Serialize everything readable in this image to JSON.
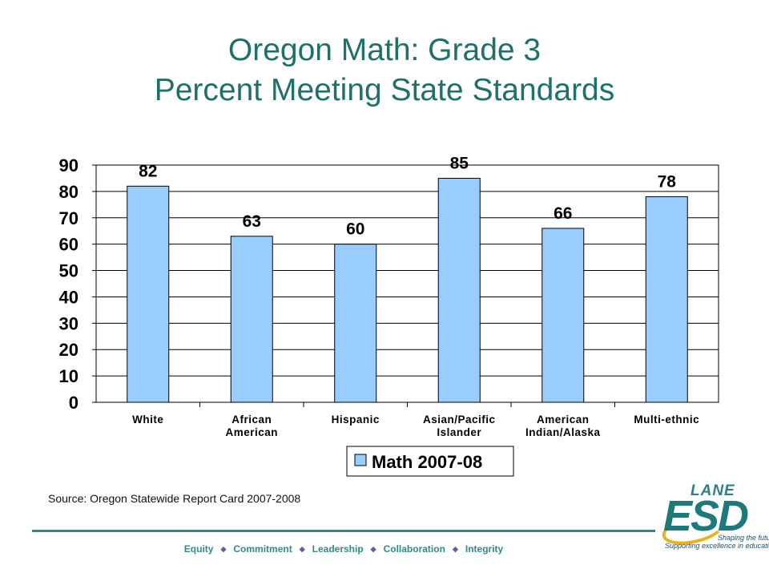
{
  "title_line1": "Oregon Math: Grade 3",
  "title_line2": "Percent Meeting State Standards",
  "chart_data": {
    "type": "bar",
    "categories": [
      [
        "White"
      ],
      [
        "African",
        "American"
      ],
      [
        "Hispanic"
      ],
      [
        "Asian/Pacific",
        "Islander"
      ],
      [
        "American",
        "Indian/Alaska"
      ],
      [
        "Multi-ethnic"
      ]
    ],
    "series": [
      {
        "name": "Math 2007-08",
        "values": [
          82,
          63,
          60,
          85,
          66,
          78
        ]
      }
    ],
    "ylim": [
      0,
      90
    ],
    "yticks": [
      0,
      10,
      20,
      30,
      40,
      50,
      60,
      70,
      80,
      90
    ],
    "grid": true,
    "data_labels": true,
    "legend_position": "bottom",
    "bar_color": "#99ccff",
    "xlabel": "",
    "ylabel": ""
  },
  "source": "Source: Oregon Statewide Report Card 2007-2008",
  "footer_values": [
    "Equity",
    "Commitment",
    "Leadership",
    "Collaboration",
    "Integrity"
  ],
  "logo": {
    "lane": "LANE",
    "esd": "ESD",
    "tagline1": "Shaping the future:",
    "tagline2": "Supporting excellence in education"
  },
  "colors": {
    "title": "#1f6f6a",
    "accent": "#2f8a8a",
    "bar": "#99ccff"
  }
}
